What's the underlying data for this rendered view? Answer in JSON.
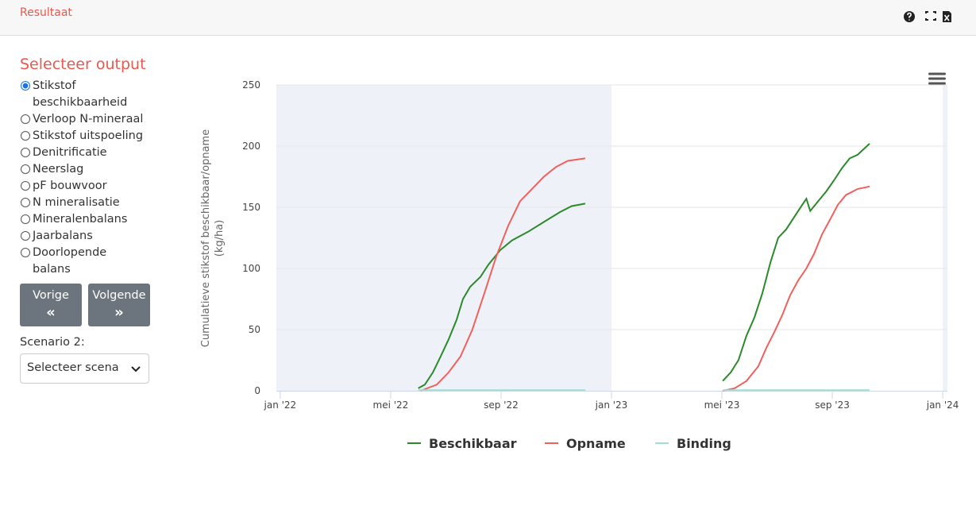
{
  "header": {
    "title": "Resultaat"
  },
  "sidebar": {
    "title": "Selecteer output",
    "options": [
      "Stikstof beschikbaarheid",
      "Verloop N-mineraal",
      "Stikstof uitspoeling",
      "Denitrificatie",
      "Neerslag",
      "pF bouwvoor",
      "N mineralisatie",
      "Mineralenbalans",
      "Jaarbalans",
      "Doorlopende balans"
    ],
    "selected": 0,
    "buttons": [
      {
        "label": "Vorige",
        "symbol": "«"
      },
      {
        "label": "Volgende",
        "symbol": "»"
      }
    ],
    "scenario_label": "Scenario 2:",
    "scenario_select": "Selecteer scena"
  },
  "chart_data": {
    "type": "line",
    "ylabel": [
      "Cumulatieve stikstof beschikbaar/opname",
      "(kg/ha)"
    ],
    "xlim": [
      -0.14,
      24.17
    ],
    "ylim": [
      0,
      250
    ],
    "xticks": [
      {
        "value": 0,
        "label": "jan '22"
      },
      {
        "value": 4,
        "label": "mei '22"
      },
      {
        "value": 8,
        "label": "sep '22"
      },
      {
        "value": 12,
        "label": "jan '23"
      },
      {
        "value": 16,
        "label": "mei '23"
      },
      {
        "value": 20,
        "label": "sep '23"
      },
      {
        "value": 24,
        "label": "jan '24"
      }
    ],
    "yticks": [
      0,
      50,
      100,
      150,
      200,
      250
    ],
    "grid": true,
    "plot_bands": [
      {
        "from": -0.14,
        "to": 12,
        "color": "#eef2f8"
      },
      {
        "from": 24,
        "to": 24.17,
        "color": "#eef2f8"
      }
    ],
    "legend": "bottom",
    "series": [
      {
        "name": "Beschikbaar",
        "color": "#2a8a2a",
        "x": [
          5.0,
          5.24,
          5.53,
          5.81,
          6.1,
          6.39,
          6.62,
          6.88,
          7.25,
          7.54,
          7.97,
          8.4,
          8.98,
          9.55,
          10.13,
          10.56,
          11.05,
          13.5,
          16.03,
          16.32,
          16.6,
          16.89,
          17.18,
          17.47,
          17.76,
          18.04,
          18.33,
          18.62,
          18.91,
          19.06,
          19.2,
          19.49,
          19.78,
          20.06,
          20.35,
          20.63,
          20.92,
          21.35
        ],
        "values": [
          2,
          5,
          15,
          28,
          42,
          58,
          75,
          85,
          93,
          103,
          115,
          123,
          130,
          138,
          146,
          151,
          153,
          null,
          8,
          15,
          25,
          45,
          60,
          80,
          105,
          125,
          132,
          142,
          152,
          157,
          147,
          155,
          163,
          172,
          182,
          190,
          193,
          202
        ]
      },
      {
        "name": "Opname",
        "color": "#f0605d",
        "x": [
          5.09,
          5.67,
          6.1,
          6.53,
          6.96,
          7.4,
          7.83,
          8.26,
          8.69,
          9.12,
          9.55,
          9.99,
          10.42,
          11.05,
          13.5,
          16.03,
          16.46,
          16.89,
          17.32,
          17.61,
          17.9,
          18.19,
          18.47,
          18.76,
          19.06,
          19.34,
          19.63,
          19.92,
          20.2,
          20.49,
          20.92,
          21.35
        ],
        "values": [
          0,
          5,
          15,
          28,
          50,
          80,
          110,
          135,
          155,
          165,
          175,
          183,
          188,
          190,
          null,
          0,
          2,
          8,
          20,
          35,
          48,
          62,
          78,
          90,
          100,
          112,
          128,
          140,
          152,
          160,
          165,
          167
        ]
      },
      {
        "name": "Binding",
        "color": "#9fe0d0",
        "x": [
          5.0,
          11.05,
          13.5,
          16.03,
          21.35
        ],
        "values": [
          0.5,
          0.5,
          null,
          0.5,
          0.5
        ]
      }
    ]
  }
}
